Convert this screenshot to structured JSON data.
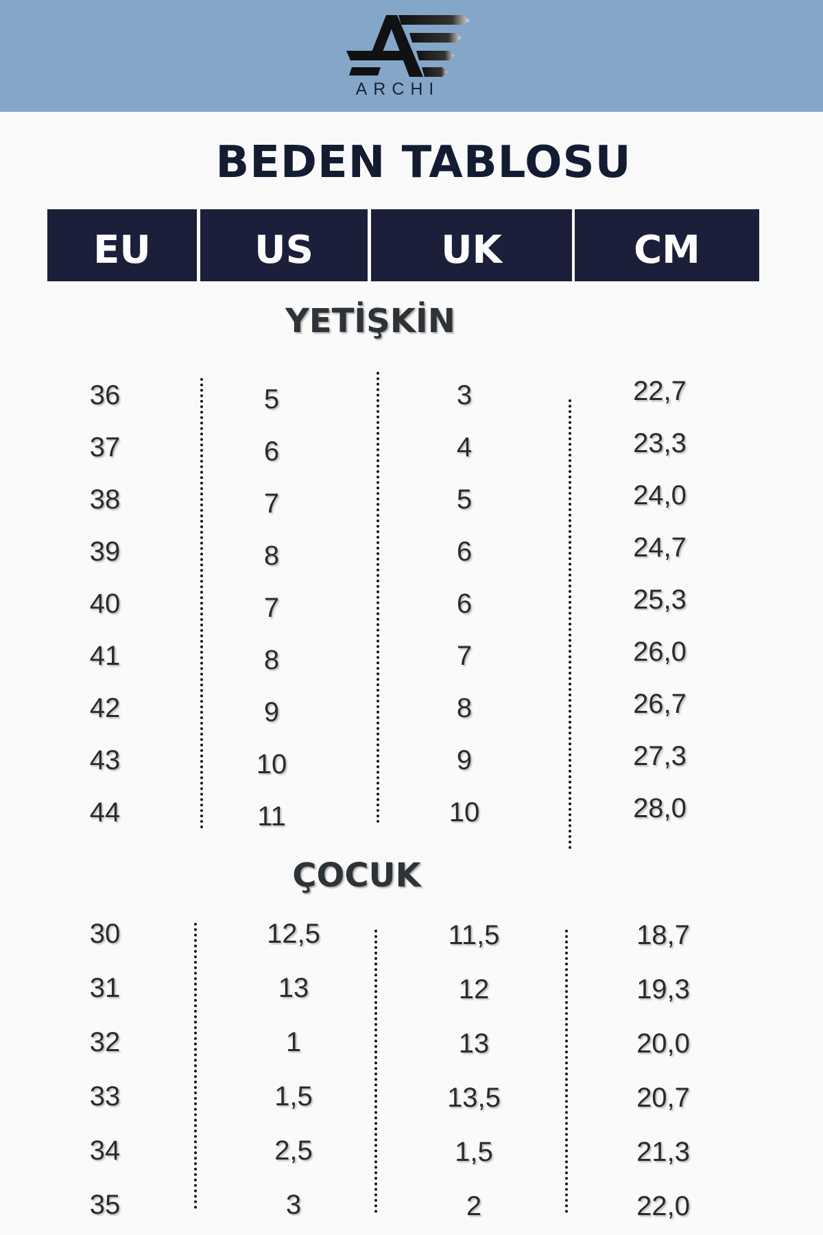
{
  "brand": {
    "name": "ARCHI",
    "logo_icon": "archi-logo",
    "band_color": "#84a6c9"
  },
  "title": "BEDEN TABLOSU",
  "headers": [
    "EU",
    "US",
    "UK",
    "CM"
  ],
  "header_color": "#1b1f3a",
  "adult": {
    "label": "YETİŞKİN",
    "rows": [
      [
        "36",
        "5",
        "3",
        "22,7"
      ],
      [
        "37",
        "6",
        "4",
        "23,3"
      ],
      [
        "38",
        "7",
        "5",
        "24,0"
      ],
      [
        "39",
        "8",
        "6",
        "24,7"
      ],
      [
        "40",
        "7",
        "6",
        "25,3"
      ],
      [
        "41",
        "8",
        "7",
        "26,0"
      ],
      [
        "42",
        "9",
        "8",
        "26,7"
      ],
      [
        "43",
        "10",
        "9",
        "27,3"
      ],
      [
        "44",
        "11",
        "10",
        "28,0"
      ]
    ]
  },
  "kids": {
    "label": "ÇOCUK",
    "rows": [
      [
        "30",
        "12,5",
        "11,5",
        "18,7"
      ],
      [
        "31",
        "13",
        "12",
        "19,3"
      ],
      [
        "32",
        "1",
        "13",
        "20,0"
      ],
      [
        "33",
        "1,5",
        "13,5",
        "20,7"
      ],
      [
        "34",
        "2,5",
        "1,5",
        "21,3"
      ],
      [
        "35",
        "3",
        "2",
        "22,0"
      ]
    ]
  }
}
